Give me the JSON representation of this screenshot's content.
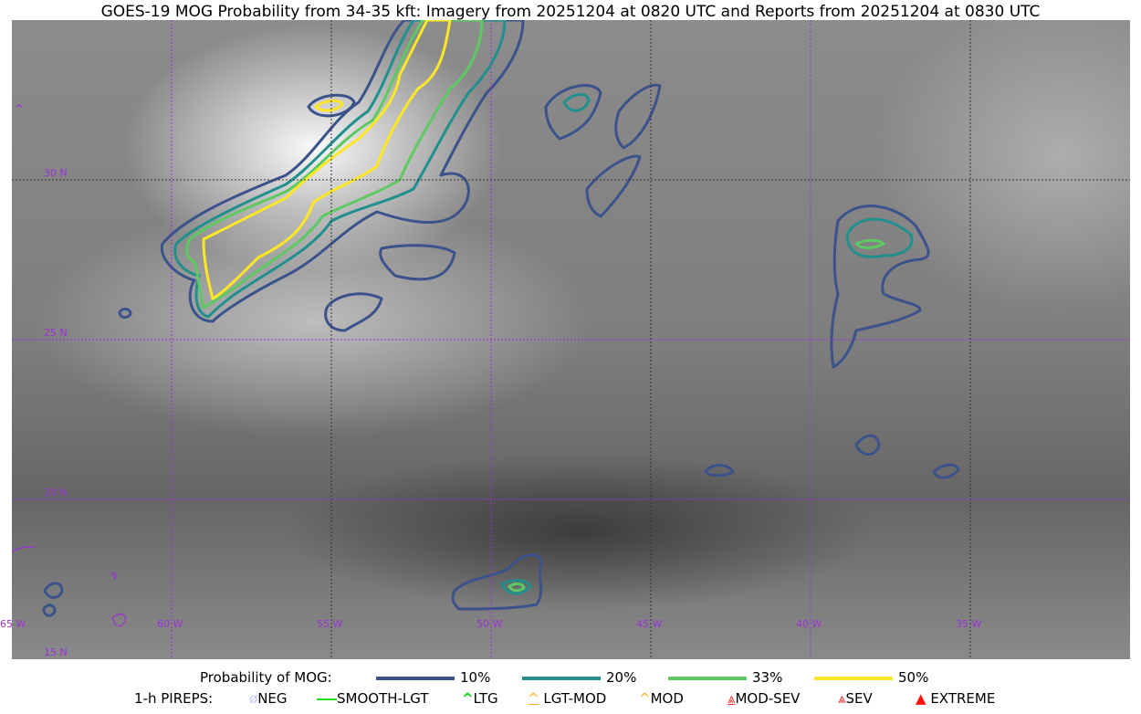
{
  "title": "GOES-19 MOG Probability from 34-35 kft: Imagery from 20251204 at 0820 UTC and Reports from 20251204 at 0830 UTC",
  "map": {
    "lon_labels": [
      "65 W",
      "60 W",
      "55 W",
      "50 W",
      "45 W",
      "40 W",
      "35 W"
    ],
    "lat_labels": [
      "30 N",
      "25 N",
      "20 N",
      "15 N"
    ],
    "extent": {
      "lon": [
        -65,
        -30
      ],
      "lat": [
        15,
        35
      ]
    },
    "grid_color": "#9b30d9",
    "contour_colors": {
      "10%": "#3b528b",
      "20%": "#21908d",
      "33%": "#5ec962",
      "50%": "#fde725"
    }
  },
  "legend": {
    "probability_label": "Probability of MOG:",
    "probability_items": [
      {
        "label": "10%",
        "color": "#3b528b"
      },
      {
        "label": "20%",
        "color": "#21908d"
      },
      {
        "label": "33%",
        "color": "#5ec962"
      },
      {
        "label": "50%",
        "color": "#fde725"
      }
    ],
    "pireps_label": "1-h PIREPS:",
    "pireps_items": [
      {
        "label": "NEG",
        "color": "#c8c8ff",
        "icon": "neg-circle-icon"
      },
      {
        "label": "SMOOTH-LGT",
        "color": "#22dd22",
        "icon": "line-icon"
      },
      {
        "label": "LTG",
        "color": "#00dd00",
        "icon": "caret-icon"
      },
      {
        "label": "LGT-MOD",
        "color": "#ffb020",
        "icon": "caret-bar-icon"
      },
      {
        "label": "MOD",
        "color": "#ffb020",
        "icon": "caret-icon"
      },
      {
        "label": "MOD-SEV",
        "color": "#ff3030",
        "icon": "double-caret-bar-icon"
      },
      {
        "label": "SEV",
        "color": "#ff3030",
        "icon": "double-caret-icon"
      },
      {
        "label": "EXTREME",
        "color": "#ff1010",
        "icon": "filled-triangle-icon"
      }
    ]
  }
}
